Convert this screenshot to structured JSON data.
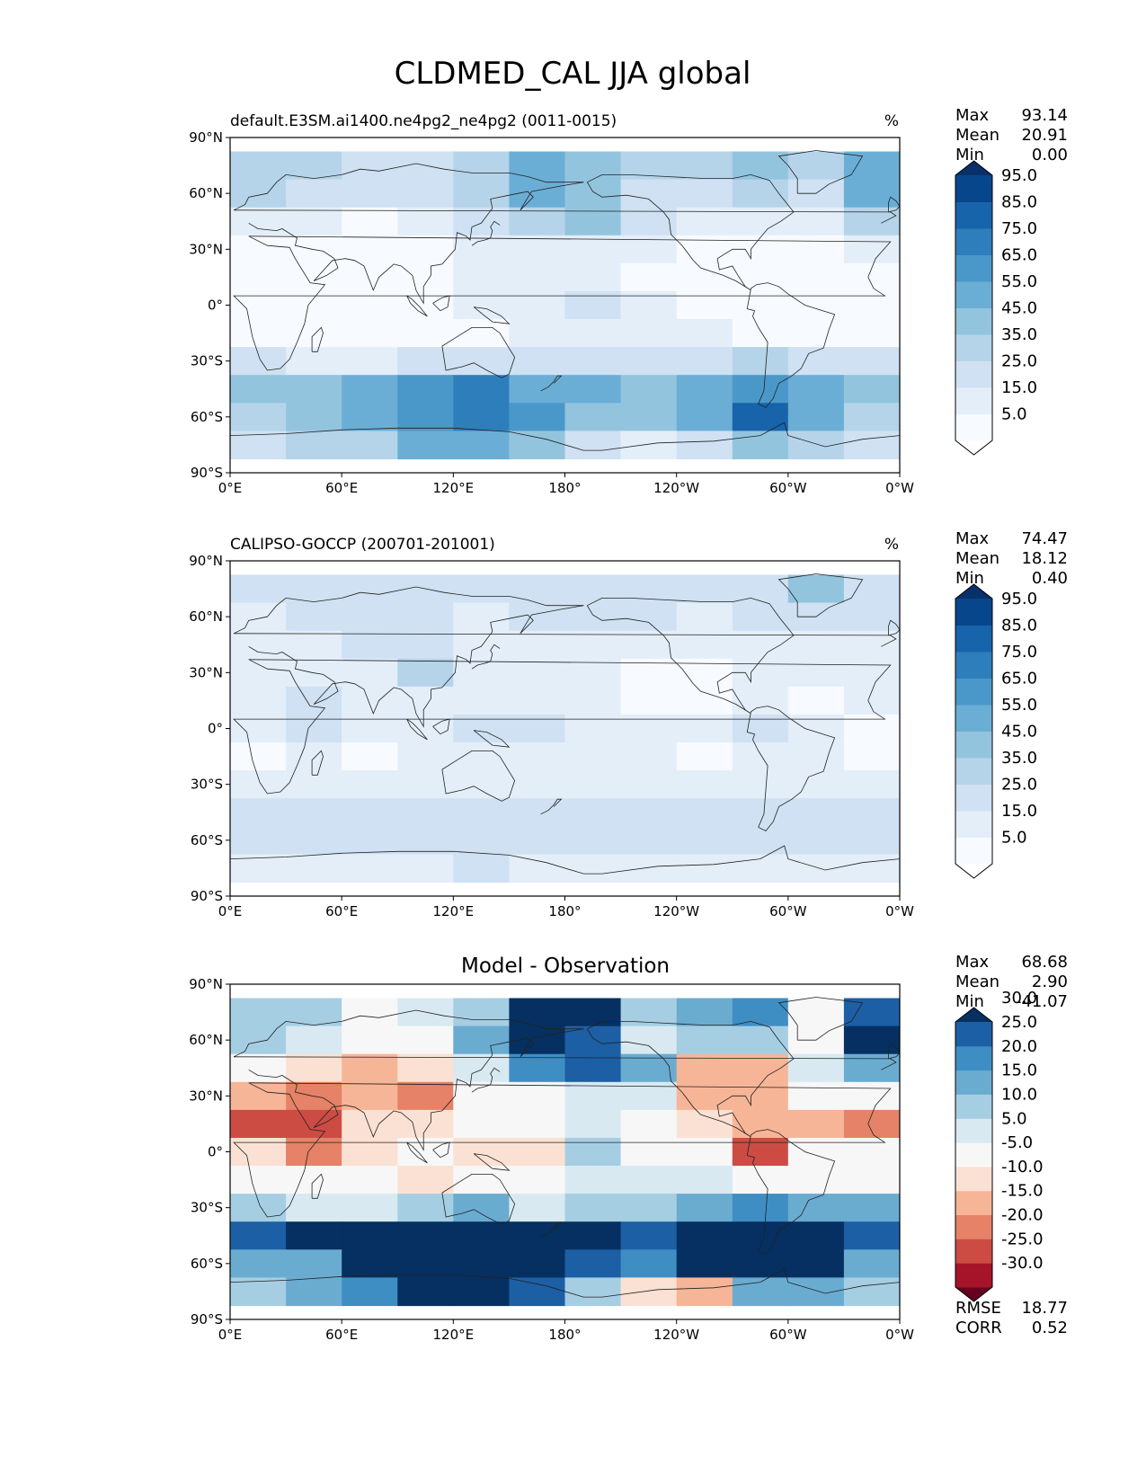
{
  "figure_title": "CLDMED_CAL JJA global",
  "panels": [
    {
      "id": "test",
      "left_title": "default.E3SM.ai1400.ne4pg2_ne4pg2 (0011-0015)",
      "center_title": "",
      "units": "%",
      "stats": [
        {
          "label": "Max",
          "value": "93.14"
        },
        {
          "label": "Mean",
          "value": "20.91"
        },
        {
          "label": "Min",
          "value": "0.00"
        }
      ],
      "colorbar": {
        "ticks": [
          "5.0",
          "15.0",
          "25.0",
          "35.0",
          "45.0",
          "55.0",
          "65.0",
          "75.0",
          "85.0",
          "95.0"
        ],
        "colors": [
          "#ffffff",
          "#f7fbff",
          "#e3eef9",
          "#cfe1f2",
          "#b5d4e9",
          "#93c4de",
          "#6aaed6",
          "#4a98c9",
          "#2e7ebc",
          "#1764ab",
          "#08468b",
          "#08306b"
        ]
      }
    },
    {
      "id": "reference",
      "left_title": "CALIPSO-GOCCP (200701-201001)",
      "center_title": "",
      "units": "%",
      "stats": [
        {
          "label": "Max",
          "value": "74.47"
        },
        {
          "label": "Mean",
          "value": "18.12"
        },
        {
          "label": "Min",
          "value": "0.40"
        }
      ],
      "colorbar": {
        "ticks": [
          "5.0",
          "15.0",
          "25.0",
          "35.0",
          "45.0",
          "55.0",
          "65.0",
          "75.0",
          "85.0",
          "95.0"
        ],
        "colors": [
          "#ffffff",
          "#f7fbff",
          "#e3eef9",
          "#cfe1f2",
          "#b5d4e9",
          "#93c4de",
          "#6aaed6",
          "#4a98c9",
          "#2e7ebc",
          "#1764ab",
          "#08468b",
          "#08306b"
        ]
      }
    },
    {
      "id": "difference",
      "left_title": "",
      "center_title": "Model - Observation",
      "units": "",
      "stats": [
        {
          "label": "Max",
          "value": "68.68"
        },
        {
          "label": "Mean",
          "value": "2.90"
        },
        {
          "label": "Min",
          "value": "-41.07"
        }
      ],
      "extra_stats": [
        {
          "label": "RMSE",
          "value": "18.77"
        },
        {
          "label": "CORR",
          "value": "0.52"
        }
      ],
      "colorbar": {
        "ticks": [
          "-30.0",
          "-25.0",
          "-20.0",
          "-15.0",
          "-10.0",
          "-5.0",
          "5.0",
          "10.0",
          "15.0",
          "20.0",
          "25.0",
          "30.0"
        ],
        "colors": [
          "#67001f",
          "#a51429",
          "#cc4c44",
          "#e58267",
          "#f7b597",
          "#fbe1d3",
          "#f7f7f7",
          "#d8e9f1",
          "#a6cee3",
          "#6aacd0",
          "#3e8ec3",
          "#1c5fa4",
          "#053061"
        ]
      }
    }
  ],
  "x_ticks": [
    "0°E",
    "60°E",
    "120°E",
    "180°",
    "120°W",
    "60°W",
    "0°W"
  ],
  "y_ticks": [
    "90°N",
    "60°N",
    "30°N",
    "0°",
    "30°S",
    "60°S",
    "90°S"
  ],
  "chart_data": [
    {
      "type": "heatmap",
      "title": "default.E3SM.ai1400.ne4pg2_ne4pg2 (0011-0015)",
      "units": "%",
      "xlim": [
        0,
        360
      ],
      "ylim": [
        -90,
        90
      ],
      "lon": [
        0,
        30,
        60,
        90,
        120,
        150,
        180,
        210,
        240,
        270,
        300,
        330
      ],
      "lat": [
        75,
        60,
        45,
        30,
        15,
        0,
        -15,
        -30,
        -45,
        -60,
        -75
      ],
      "values": [
        [
          35,
          35,
          25,
          30,
          35,
          55,
          50,
          35,
          40,
          45,
          35,
          55
        ],
        [
          35,
          30,
          25,
          25,
          40,
          55,
          50,
          30,
          30,
          35,
          30,
          60
        ],
        [
          20,
          15,
          10,
          15,
          25,
          40,
          45,
          30,
          20,
          15,
          20,
          35
        ],
        [
          10,
          5,
          5,
          10,
          15,
          15,
          20,
          15,
          10,
          5,
          10,
          15
        ],
        [
          5,
          5,
          5,
          10,
          15,
          15,
          20,
          10,
          5,
          5,
          5,
          10
        ],
        [
          5,
          5,
          5,
          10,
          15,
          20,
          25,
          15,
          10,
          5,
          5,
          5
        ],
        [
          5,
          5,
          5,
          5,
          10,
          15,
          20,
          20,
          15,
          10,
          5,
          5
        ],
        [
          25,
          20,
          20,
          25,
          30,
          25,
          25,
          25,
          30,
          35,
          30,
          30
        ],
        [
          45,
          50,
          55,
          65,
          75,
          60,
          55,
          50,
          60,
          70,
          60,
          50
        ],
        [
          40,
          45,
          55,
          70,
          80,
          65,
          50,
          45,
          55,
          85,
          60,
          40
        ],
        [
          30,
          35,
          40,
          55,
          60,
          45,
          30,
          20,
          30,
          45,
          35,
          30
        ]
      ],
      "levels": [
        5,
        15,
        25,
        35,
        45,
        55,
        65,
        75,
        85,
        95
      ]
    },
    {
      "type": "heatmap",
      "title": "CALIPSO-GOCCP (200701-201001)",
      "units": "%",
      "xlim": [
        0,
        360
      ],
      "ylim": [
        -90,
        90
      ],
      "lon": [
        0,
        30,
        60,
        90,
        120,
        150,
        180,
        210,
        240,
        270,
        300,
        330
      ],
      "lat": [
        75,
        60,
        45,
        30,
        15,
        0,
        -15,
        -30,
        -45,
        -60,
        -75
      ],
      "values": [
        [
          25,
          25,
          25,
          25,
          25,
          25,
          25,
          25,
          25,
          25,
          45,
          30
        ],
        [
          20,
          25,
          25,
          25,
          20,
          25,
          25,
          25,
          20,
          25,
          30,
          25
        ],
        [
          20,
          20,
          25,
          25,
          20,
          20,
          20,
          15,
          15,
          20,
          20,
          20
        ],
        [
          15,
          20,
          20,
          35,
          20,
          15,
          15,
          10,
          10,
          15,
          15,
          15
        ],
        [
          20,
          25,
          15,
          20,
          15,
          15,
          15,
          10,
          10,
          15,
          10,
          15
        ],
        [
          15,
          25,
          15,
          15,
          25,
          25,
          15,
          15,
          15,
          30,
          15,
          10
        ],
        [
          10,
          15,
          10,
          15,
          15,
          15,
          15,
          15,
          10,
          15,
          15,
          10
        ],
        [
          15,
          15,
          15,
          15,
          15,
          20,
          15,
          15,
          15,
          15,
          15,
          15
        ],
        [
          25,
          25,
          25,
          25,
          25,
          25,
          25,
          25,
          25,
          25,
          25,
          25
        ],
        [
          25,
          30,
          25,
          30,
          25,
          25,
          25,
          25,
          25,
          30,
          25,
          25
        ],
        [
          20,
          20,
          20,
          20,
          25,
          20,
          20,
          20,
          20,
          20,
          20,
          20
        ]
      ],
      "levels": [
        5,
        15,
        25,
        35,
        45,
        55,
        65,
        75,
        85,
        95
      ]
    },
    {
      "type": "heatmap",
      "title": "Model - Observation",
      "xlim": [
        0,
        360
      ],
      "ylim": [
        -90,
        90
      ],
      "lon": [
        0,
        30,
        60,
        90,
        120,
        150,
        180,
        210,
        240,
        270,
        300,
        330
      ],
      "lat": [
        75,
        60,
        45,
        30,
        15,
        0,
        -15,
        -30,
        -45,
        -60,
        -75
      ],
      "values": [
        [
          10,
          10,
          0,
          5,
          10,
          30,
          30,
          10,
          15,
          20,
          -5,
          25
        ],
        [
          12,
          5,
          -5,
          -5,
          15,
          30,
          25,
          5,
          10,
          10,
          0,
          35
        ],
        [
          -5,
          -10,
          -15,
          -10,
          5,
          20,
          25,
          15,
          -15,
          -15,
          5,
          15
        ],
        [
          -15,
          -20,
          -15,
          -20,
          -5,
          0,
          5,
          5,
          -15,
          -15,
          0,
          -5
        ],
        [
          -25,
          -25,
          -10,
          -10,
          0,
          0,
          5,
          0,
          -10,
          -15,
          -15,
          -20
        ],
        [
          -10,
          -20,
          -10,
          -5,
          -10,
          -10,
          10,
          0,
          -5,
          -25,
          -5,
          -5
        ],
        [
          -5,
          -5,
          -5,
          -10,
          -5,
          0,
          5,
          5,
          5,
          0,
          -5,
          -5
        ],
        [
          10,
          5,
          5,
          10,
          15,
          5,
          10,
          10,
          15,
          20,
          15,
          15
        ],
        [
          25,
          30,
          30,
          40,
          50,
          35,
          30,
          25,
          35,
          40,
          35,
          25
        ],
        [
          15,
          15,
          30,
          40,
          55,
          40,
          25,
          20,
          30,
          55,
          35,
          15
        ],
        [
          10,
          15,
          20,
          35,
          35,
          25,
          10,
          -10,
          -15,
          15,
          15,
          10
        ]
      ],
      "levels": [
        -30,
        -25,
        -20,
        -15,
        -10,
        -5,
        5,
        10,
        15,
        20,
        25,
        30
      ]
    }
  ]
}
